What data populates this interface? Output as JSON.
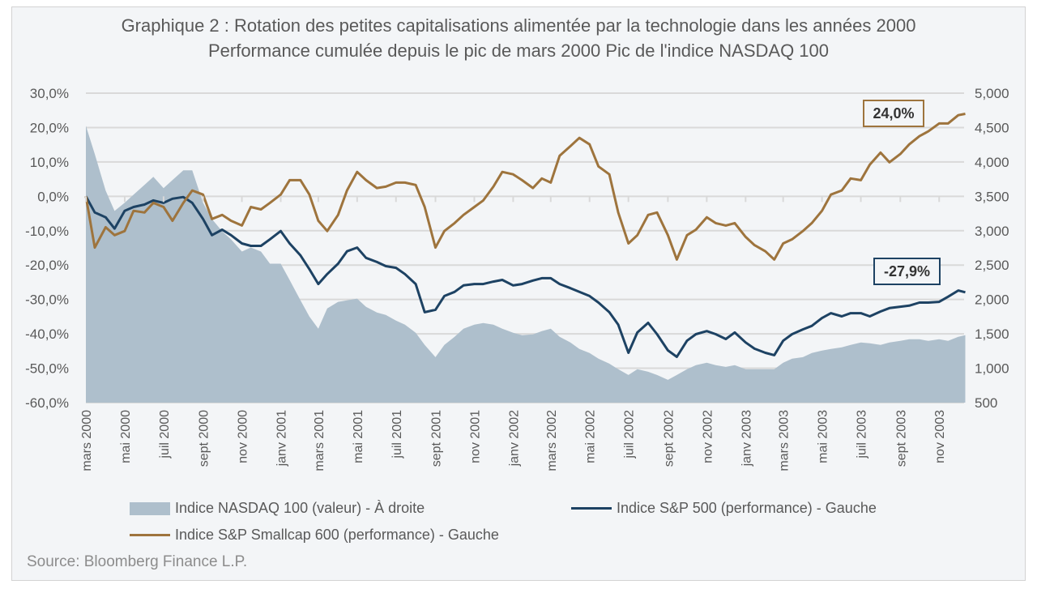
{
  "chart_data": {
    "type": "line",
    "title": "Graphique 2 : Rotation des petites capitalisations alimentée par la technologie dans les années 2000",
    "subtitle": "Performance cumulée depuis le pic de mars 2000 Pic de l'indice NASDAQ 100",
    "source": "Source: Bloomberg Finance L.P.",
    "grid": true,
    "legend_placement": "bottom",
    "y_left": {
      "min": -60,
      "max": 30,
      "ticks": [
        "30,0%",
        "20,0%",
        "10,0%",
        "0,0%",
        "-10,0%",
        "-20,0%",
        "-30,0%",
        "-40,0%",
        "-50,0%",
        "-60,0%"
      ]
    },
    "y_right": {
      "min": 500,
      "max": 5000,
      "ticks": [
        "5,000",
        "4,500",
        "4,000",
        "3,500",
        "3,000",
        "2,500",
        "2,000",
        "1,500",
        "1,000",
        "500"
      ]
    },
    "x_ticks": [
      {
        "date": "2000-03-01",
        "label": "mars 2000"
      },
      {
        "date": "2000-05-01",
        "label": "mai 2000"
      },
      {
        "date": "2000-07-01",
        "label": "juil 2000"
      },
      {
        "date": "2000-09-01",
        "label": "sept 2000"
      },
      {
        "date": "2000-11-01",
        "label": "nov 2000"
      },
      {
        "date": "2001-01-01",
        "label": "janv 2001"
      },
      {
        "date": "2001-03-01",
        "label": "mars 2001"
      },
      {
        "date": "2001-05-01",
        "label": "mai 2001"
      },
      {
        "date": "2001-07-01",
        "label": "juil 2001"
      },
      {
        "date": "2001-09-01",
        "label": "sept 2001"
      },
      {
        "date": "2001-11-01",
        "label": "nov 2001"
      },
      {
        "date": "2002-01-01",
        "label": "janv 2002"
      },
      {
        "date": "2002-03-01",
        "label": "mars 2002"
      },
      {
        "date": "2002-05-01",
        "label": "mai 2002"
      },
      {
        "date": "2002-07-01",
        "label": "juil 2002"
      },
      {
        "date": "2002-09-01",
        "label": "sept 2002"
      },
      {
        "date": "2002-11-01",
        "label": "nov 2002"
      },
      {
        "date": "2003-01-01",
        "label": "janv 2003"
      },
      {
        "date": "2003-03-01",
        "label": "mars 2003"
      },
      {
        "date": "2003-05-01",
        "label": "mai 2003"
      },
      {
        "date": "2003-07-01",
        "label": "juil 2003"
      },
      {
        "date": "2003-09-01",
        "label": "sept 2003"
      },
      {
        "date": "2003-11-01",
        "label": "nov 2003"
      }
    ],
    "dates": [
      "2000-03-01",
      "2000-03-15",
      "2000-04-01",
      "2000-04-15",
      "2000-05-01",
      "2000-05-15",
      "2000-06-01",
      "2000-06-15",
      "2000-07-01",
      "2000-07-15",
      "2000-08-01",
      "2000-08-15",
      "2000-09-01",
      "2000-09-15",
      "2000-10-01",
      "2000-10-15",
      "2000-11-01",
      "2000-11-15",
      "2000-12-01",
      "2000-12-15",
      "2001-01-01",
      "2001-01-15",
      "2001-02-01",
      "2001-02-15",
      "2001-03-01",
      "2001-03-15",
      "2001-04-01",
      "2001-04-15",
      "2001-05-01",
      "2001-05-15",
      "2001-06-01",
      "2001-06-15",
      "2001-07-01",
      "2001-07-15",
      "2001-08-01",
      "2001-08-15",
      "2001-09-01",
      "2001-09-15",
      "2001-10-01",
      "2001-10-15",
      "2001-11-01",
      "2001-11-15",
      "2001-12-01",
      "2001-12-15",
      "2002-01-01",
      "2002-01-15",
      "2002-02-01",
      "2002-02-15",
      "2002-03-01",
      "2002-03-15",
      "2002-04-01",
      "2002-04-15",
      "2002-05-01",
      "2002-05-15",
      "2002-06-01",
      "2002-06-15",
      "2002-07-01",
      "2002-07-15",
      "2002-08-01",
      "2002-08-15",
      "2002-09-01",
      "2002-09-15",
      "2002-10-01",
      "2002-10-15",
      "2002-11-01",
      "2002-11-15",
      "2002-12-01",
      "2002-12-15",
      "2003-01-01",
      "2003-01-15",
      "2003-02-01",
      "2003-02-15",
      "2003-03-01",
      "2003-03-15",
      "2003-04-01",
      "2003-04-15",
      "2003-05-01",
      "2003-05-15",
      "2003-06-01",
      "2003-06-15",
      "2003-07-01",
      "2003-07-15",
      "2003-08-01",
      "2003-08-15",
      "2003-09-01",
      "2003-09-15",
      "2003-10-01",
      "2003-10-15",
      "2003-11-01",
      "2003-11-15",
      "2003-12-01",
      "2003-12-12"
    ],
    "series": [
      {
        "name": "Indice NASDAQ 100 (valeur) - À droite",
        "axis": "right",
        "style": "area",
        "color": "#aebfcc",
        "values": [
          4527,
          4114,
          3583,
          3287,
          3406,
          3524,
          3665,
          3783,
          3618,
          3736,
          3878,
          3878,
          3406,
          3169,
          2992,
          2874,
          2697,
          2756,
          2697,
          2520,
          2520,
          2284,
          1988,
          1752,
          1575,
          1870,
          1965,
          1988,
          2012,
          1894,
          1811,
          1776,
          1693,
          1634,
          1516,
          1339,
          1161,
          1339,
          1457,
          1575,
          1634,
          1658,
          1634,
          1575,
          1516,
          1480,
          1492,
          1540,
          1575,
          1457,
          1374,
          1280,
          1221,
          1138,
          1067,
          985,
          902,
          985,
          949,
          902,
          831,
          902,
          985,
          1044,
          1079,
          1044,
          1020,
          1044,
          985,
          985,
          985,
          985,
          1079,
          1138,
          1161,
          1221,
          1256,
          1280,
          1303,
          1339,
          1374,
          1362,
          1339,
          1374,
          1398,
          1421,
          1421,
          1398,
          1421,
          1398,
          1457,
          1480
        ]
      },
      {
        "name": "Indice S&P 500 (performance) - Gauche",
        "axis": "left",
        "style": "line",
        "color": "#1d4263",
        "values": [
          0,
          -4.7,
          -6.1,
          -9.4,
          -4.2,
          -3.1,
          -2.4,
          -1.2,
          -1.9,
          -0.7,
          -0.2,
          -1.9,
          -6.6,
          -11.3,
          -9.7,
          -11.3,
          -13.7,
          -14.4,
          -14.4,
          -12.5,
          -10.1,
          -13.7,
          -17.2,
          -21.2,
          -25.5,
          -22.6,
          -19.6,
          -16.0,
          -14.9,
          -17.9,
          -19.1,
          -20.3,
          -20.8,
          -22.6,
          -25.5,
          -33.7,
          -33.0,
          -29.0,
          -27.8,
          -25.9,
          -25.5,
          -25.5,
          -24.8,
          -24.3,
          -25.9,
          -25.5,
          -24.5,
          -23.8,
          -23.8,
          -25.5,
          -26.7,
          -27.8,
          -29.0,
          -30.9,
          -33.7,
          -37.3,
          -45.5,
          -39.6,
          -36.8,
          -40.1,
          -44.8,
          -46.7,
          -42.0,
          -40.1,
          -39.2,
          -40.1,
          -41.5,
          -39.6,
          -42.5,
          -44.3,
          -45.5,
          -46.2,
          -42.0,
          -40.1,
          -38.7,
          -37.7,
          -35.4,
          -34.0,
          -34.9,
          -34.0,
          -34.0,
          -34.9,
          -33.5,
          -32.5,
          -32.1,
          -31.8,
          -30.9,
          -30.9,
          -30.7,
          -29.2,
          -27.4,
          -27.9
        ]
      },
      {
        "name": "Indice S&P Smallcap 600 (performance) - Gauche",
        "axis": "left",
        "style": "line",
        "color": "#9e743d",
        "values": [
          0,
          -14.9,
          -9.0,
          -11.3,
          -10.1,
          -4.2,
          -4.7,
          -1.9,
          -3.1,
          -7.1,
          -1.9,
          1.7,
          0.5,
          -6.6,
          -5.4,
          -7.1,
          -8.5,
          -3.1,
          -3.8,
          -1.9,
          0.5,
          4.7,
          4.7,
          0.5,
          -7.1,
          -10.1,
          -5.4,
          1.7,
          7.1,
          4.7,
          2.4,
          2.8,
          4.0,
          4.0,
          3.3,
          -3.1,
          -14.9,
          -10.1,
          -7.8,
          -5.4,
          -3.1,
          -1.2,
          2.8,
          7.1,
          6.4,
          4.7,
          2.4,
          5.2,
          4.0,
          11.8,
          14.6,
          17.0,
          15.1,
          8.7,
          6.4,
          -4.7,
          -13.7,
          -11.3,
          -5.4,
          -4.7,
          -11.3,
          -18.4,
          -11.3,
          -9.7,
          -6.1,
          -7.8,
          -8.5,
          -7.8,
          -11.8,
          -14.2,
          -16.0,
          -18.4,
          -13.7,
          -12.5,
          -10.1,
          -7.8,
          -4.2,
          0.5,
          1.7,
          5.2,
          4.7,
          9.2,
          12.7,
          9.9,
          12.3,
          15.1,
          17.5,
          18.9,
          21.2,
          21.2,
          23.6,
          24.0
        ]
      }
    ],
    "annotations": [
      {
        "text": "24,0%",
        "series": "Indice S&P Smallcap 600 (performance) - Gauche",
        "color": "#9e743d"
      },
      {
        "text": "-27,9%",
        "series": "Indice S&P 500 (performance) - Gauche",
        "color": "#1d4263"
      }
    ]
  }
}
